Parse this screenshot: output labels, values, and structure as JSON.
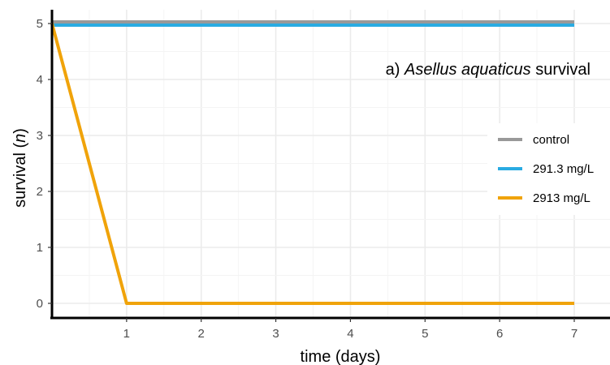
{
  "chart_data": {
    "type": "line",
    "title": "",
    "xlabel": "time (days)",
    "ylabel": {
      "prefix": "survival (",
      "italic": "n",
      "suffix": ")"
    },
    "annotation": {
      "prefix": "a) ",
      "italic": "Asellus aquaticus",
      "suffix": " survival"
    },
    "xlim": [
      0,
      7
    ],
    "ylim": [
      0,
      5
    ],
    "x_ticks": [
      "1",
      "2",
      "3",
      "4",
      "5",
      "6",
      "7"
    ],
    "y_ticks": [
      "0",
      "1",
      "2",
      "3",
      "4",
      "5"
    ],
    "grid": true,
    "legend_position": "right",
    "series": [
      {
        "name": "control",
        "color": "#999999",
        "x": [
          0,
          1,
          2,
          3,
          4,
          5,
          6,
          7
        ],
        "y": [
          5,
          5,
          5,
          5,
          5,
          5,
          5,
          5
        ]
      },
      {
        "name": "291.3 mg/L",
        "color": "#29ABE2",
        "x": [
          0,
          1,
          2,
          3,
          4,
          5,
          6,
          7
        ],
        "y": [
          5,
          5,
          5,
          5,
          5,
          5,
          5,
          5
        ]
      },
      {
        "name": "2913 mg/L",
        "color": "#F0A30A",
        "x": [
          0,
          1,
          2,
          3,
          4,
          5,
          6,
          7
        ],
        "y": [
          5,
          0,
          0,
          0,
          0,
          0,
          0,
          0
        ]
      }
    ]
  }
}
